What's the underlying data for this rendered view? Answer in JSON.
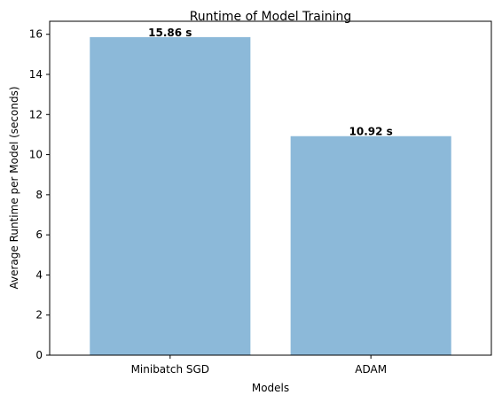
{
  "chart_data": {
    "type": "bar",
    "title": "Runtime of Model Training",
    "xlabel": "Models",
    "ylabel": "Average Runtime per Model (seconds)",
    "categories": [
      "Minibatch SGD",
      "ADAM"
    ],
    "values": [
      15.86,
      10.92
    ],
    "value_labels": [
      "15.86 s",
      "10.92 s"
    ],
    "ylim": [
      0,
      16.65
    ],
    "yticks": [
      0,
      2,
      4,
      6,
      8,
      10,
      12,
      14,
      16
    ],
    "grid": false,
    "legend": "none",
    "bar_color": "#8cb9d9"
  }
}
